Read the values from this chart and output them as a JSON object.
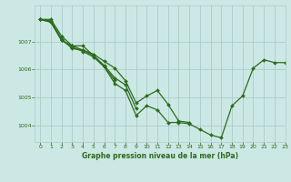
{
  "title": "Graphe pression niveau de la mer (hPa)",
  "bg_color": "#cce8e4",
  "grid_color": "#aaccca",
  "line_color": "#2d6b1e",
  "xlim": [
    -0.5,
    23
  ],
  "ylim": [
    1003.4,
    1008.3
  ],
  "yticks": [
    1004,
    1005,
    1006,
    1007
  ],
  "xticks": [
    0,
    1,
    2,
    3,
    4,
    5,
    6,
    7,
    8,
    9,
    10,
    11,
    12,
    13,
    14,
    15,
    16,
    17,
    18,
    19,
    20,
    21,
    22,
    23
  ],
  "lines": [
    [
      1007.8,
      1007.8,
      1007.2,
      1006.85,
      1006.85,
      1006.5,
      1006.1,
      1005.5,
      1005.25,
      1004.35,
      1004.7,
      1004.55,
      1004.1,
      1004.1,
      1004.05,
      1003.85,
      1003.65,
      1003.55,
      1004.7,
      1005.05,
      1006.05,
      1006.35,
      1006.25,
      1006.25
    ],
    [
      1007.8,
      1007.75,
      1007.1,
      1006.75,
      1006.7,
      1006.55,
      1006.3,
      1006.05,
      1005.6,
      1004.8,
      1005.05,
      1005.25,
      1004.75,
      1004.15,
      1004.1,
      null,
      null,
      null,
      null,
      null,
      null,
      null,
      null,
      null
    ],
    [
      1007.8,
      1007.7,
      1007.05,
      1006.85,
      1006.7,
      1006.5,
      1006.15,
      1005.7,
      1005.45,
      1004.6,
      null,
      null,
      null,
      null,
      null,
      null,
      null,
      null,
      null,
      null,
      null,
      null,
      null,
      null
    ],
    [
      1007.8,
      1007.7,
      1007.05,
      1006.8,
      1006.65,
      1006.45,
      1006.1,
      1005.62,
      null,
      null,
      null,
      null,
      null,
      null,
      null,
      null,
      null,
      null,
      null,
      null,
      null,
      null,
      null,
      null
    ]
  ]
}
